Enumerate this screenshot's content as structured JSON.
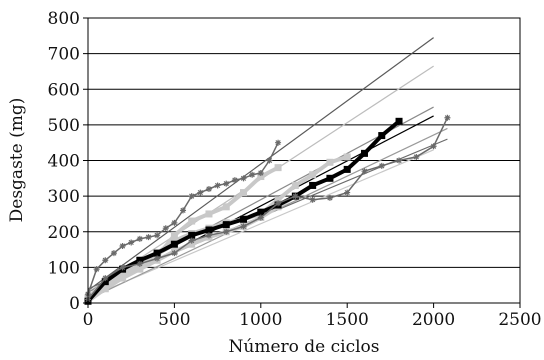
{
  "chart_data": {
    "type": "scatter",
    "title": "",
    "xlabel": "Número de ciclos",
    "ylabel": "Desgaste (mg)",
    "xlim": [
      0,
      2500
    ],
    "ylim": [
      0,
      800
    ],
    "xticks": [
      0,
      500,
      1000,
      1500,
      2000,
      2500
    ],
    "yticks": [
      0,
      100,
      200,
      300,
      400,
      500,
      600,
      700,
      800
    ],
    "grid": "horizontal",
    "legend": "none",
    "series": [
      {
        "marker": "square",
        "color": "#c8c8c8",
        "x": [
          0,
          100,
          200,
          300,
          400,
          500,
          600,
          700,
          800,
          900,
          1000,
          1100
        ],
        "y": [
          10,
          50,
          80,
          105,
          130,
          190,
          230,
          250,
          270,
          310,
          355,
          380
        ]
      },
      {
        "marker": "square",
        "color": "#c8c8c8",
        "x": [
          0,
          100,
          200,
          300,
          400,
          500,
          600,
          700,
          800,
          900,
          1000,
          1100,
          1200,
          1300,
          1400,
          1500
        ],
        "y": [
          15,
          60,
          90,
          115,
          140,
          175,
          195,
          210,
          225,
          235,
          250,
          290,
          330,
          360,
          395,
          410
        ]
      },
      {
        "marker": "square",
        "color": "#c8c8c8",
        "x": [
          0,
          100,
          200,
          300,
          400,
          500,
          600,
          700,
          800,
          900,
          1000,
          1100,
          1200,
          1300
        ],
        "y": [
          5,
          40,
          70,
          95,
          120,
          145,
          165,
          185,
          200,
          215,
          240,
          270,
          300,
          330
        ]
      },
      {
        "marker": "square",
        "color": "#000000",
        "x": [
          0,
          100,
          200,
          300,
          400,
          500,
          600,
          700,
          800,
          900,
          1000,
          1100,
          1200,
          1300,
          1400,
          1500,
          1600,
          1700,
          1800
        ],
        "y": [
          5,
          60,
          95,
          120,
          140,
          165,
          190,
          205,
          220,
          235,
          255,
          275,
          300,
          330,
          350,
          375,
          420,
          470,
          510
        ]
      },
      {
        "marker": "star",
        "color": "#6a6a6a",
        "x": [
          0,
          50,
          100,
          150,
          200,
          250,
          300,
          350,
          400,
          450,
          500,
          550,
          600,
          650,
          700,
          750,
          800,
          850,
          900,
          950,
          1000,
          1050,
          1100
        ],
        "y": [
          25,
          95,
          120,
          140,
          160,
          170,
          180,
          185,
          190,
          210,
          225,
          260,
          300,
          310,
          320,
          330,
          335,
          345,
          350,
          360,
          365,
          400,
          450
        ]
      },
      {
        "marker": "star",
        "color": "#6a6a6a",
        "x": [
          0,
          100,
          200,
          300,
          400,
          500,
          600,
          700,
          800,
          900,
          1000,
          1100,
          1200,
          1300,
          1400,
          1500,
          1600,
          1700,
          1800,
          1900,
          2000,
          2080
        ],
        "y": [
          10,
          70,
          100,
          110,
          125,
          140,
          175,
          190,
          200,
          215,
          240,
          280,
          300,
          290,
          295,
          310,
          370,
          385,
          400,
          410,
          440,
          520
        ]
      }
    ],
    "trendlines": [
      {
        "color": "#5a5a5a",
        "x": [
          0,
          2000
        ],
        "y": [
          35,
          745
        ]
      },
      {
        "color": "#bdbdbd",
        "x": [
          0,
          2000
        ],
        "y": [
          30,
          665
        ]
      },
      {
        "color": "#000000",
        "x": [
          0,
          2000
        ],
        "y": [
          20,
          525
        ]
      },
      {
        "color": "#8a8a8a",
        "x": [
          0,
          2000
        ],
        "y": [
          30,
          550
        ]
      },
      {
        "color": "#6a6a6a",
        "x": [
          0,
          2080
        ],
        "y": [
          40,
          460
        ]
      },
      {
        "color": "#c8c8c8",
        "x": [
          0,
          2000
        ],
        "y": [
          15,
          430
        ]
      },
      {
        "color": "#9a9a9a",
        "x": [
          0,
          2080
        ],
        "y": [
          10,
          490
        ]
      }
    ]
  }
}
